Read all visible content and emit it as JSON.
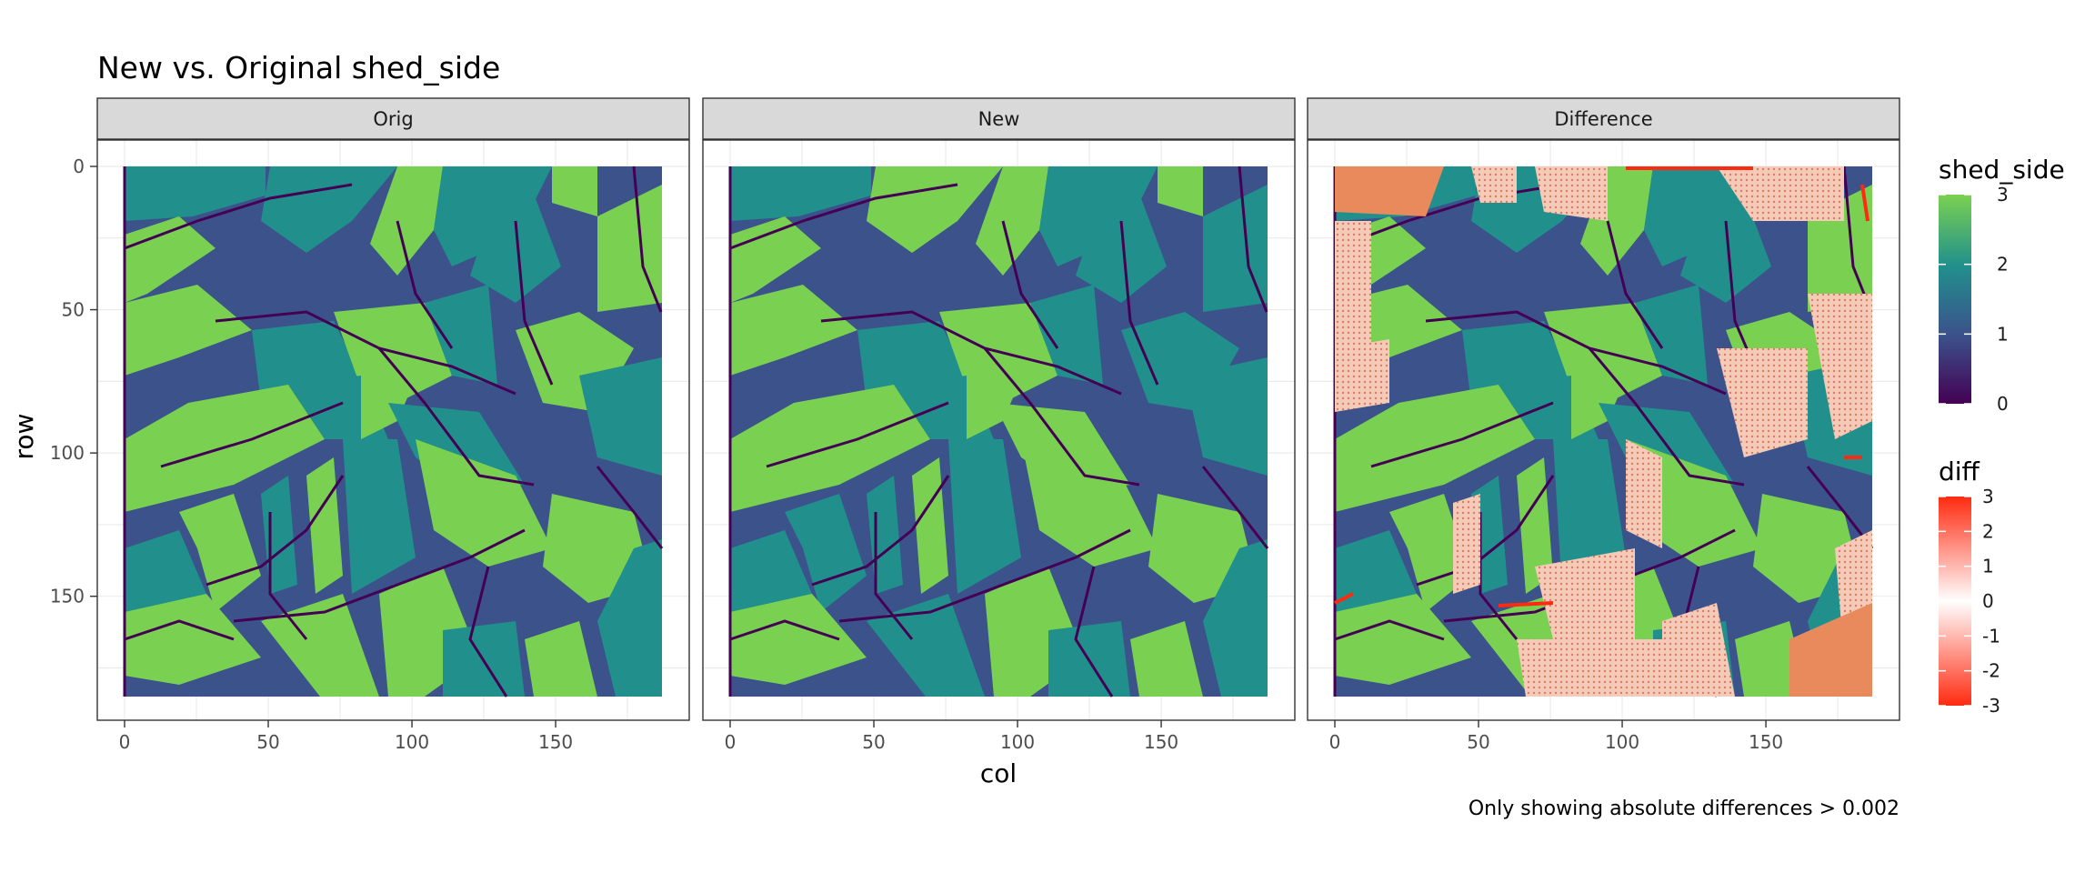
{
  "chart_data": {
    "type": "heatmap",
    "title": "New vs. Original shed_side",
    "xlabel": "col",
    "ylabel": "row",
    "caption": "Only showing absolute differences > 0.002",
    "xlim": [
      0,
      187
    ],
    "ylim": [
      0,
      185
    ],
    "y_reversed": true,
    "x_ticks": [
      0,
      50,
      100,
      150
    ],
    "y_ticks": [
      0,
      50,
      100,
      150
    ],
    "grid": true,
    "panels": [
      {
        "name": "Orig",
        "layer": "shed_side"
      },
      {
        "name": "New",
        "layer": "shed_side"
      },
      {
        "name": "Difference",
        "layer": "shed_side_with_diff_overlay"
      }
    ],
    "shed_side_scale": {
      "name": "shed_side",
      "range": [
        0,
        3
      ],
      "ticks": [
        3,
        2,
        1,
        0
      ],
      "palette": [
        "#440154",
        "#3b528b",
        "#21908c",
        "#5ec962",
        "#7ad151"
      ]
    },
    "diff_scale": {
      "name": "diff",
      "range": [
        -3,
        3
      ],
      "ticks": [
        3,
        2,
        1,
        0,
        -1,
        -2,
        -3
      ],
      "palette": [
        "#ff2a10",
        "#ffffff",
        "#ff2a10"
      ]
    },
    "legend_position": "right",
    "regions": [
      {
        "label": "shed_side 1 (dark blue)",
        "value": 1,
        "color": "#3b528b"
      },
      {
        "label": "shed_side 2 (teal)",
        "value": 2,
        "color": "#21908c"
      },
      {
        "label": "shed_side 3 (green)",
        "value": 3,
        "color": "#7ad151"
      },
      {
        "label": "shed_side 0 (boundary lines)",
        "value": 0,
        "color": "#440154"
      }
    ]
  }
}
